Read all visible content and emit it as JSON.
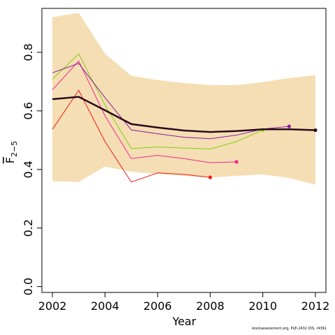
{
  "chart_data": {
    "type": "line",
    "xlabel": "Year",
    "ylabel_main": "F",
    "ylabel_sub": "2−5",
    "xlim": [
      2001.6,
      2012.4
    ],
    "ylim": [
      -0.02,
      0.95
    ],
    "x_ticks": [
      {
        "value": 2002,
        "label": "2002"
      },
      {
        "value": 2004,
        "label": "2004"
      },
      {
        "value": 2006,
        "label": "2006"
      },
      {
        "value": 2008,
        "label": "2008"
      },
      {
        "value": 2010,
        "label": "2010"
      },
      {
        "value": 2012,
        "label": "2012"
      }
    ],
    "y_ticks": [
      {
        "value": 0.0,
        "label": "0.0"
      },
      {
        "value": 0.2,
        "label": "0.2"
      },
      {
        "value": 0.4,
        "label": "0.4"
      },
      {
        "value": 0.6,
        "label": "0.6"
      },
      {
        "value": 0.8,
        "label": "0.8"
      }
    ],
    "band": {
      "color": "#f5deb3",
      "x": [
        2002,
        2003,
        2004,
        2005,
        2006,
        2007,
        2008,
        2009,
        2010,
        2011,
        2012
      ],
      "upper": [
        0.92,
        0.935,
        0.795,
        0.72,
        0.705,
        0.695,
        0.688,
        0.688,
        0.698,
        0.712,
        0.722
      ],
      "lower": [
        0.36,
        0.357,
        0.41,
        0.392,
        0.385,
        0.378,
        0.372,
        0.378,
        0.383,
        0.371,
        0.348
      ]
    },
    "main_series": {
      "color": "#2a0a1e",
      "x": [
        2002,
        2003,
        2004,
        2005,
        2006,
        2007,
        2008,
        2009,
        2010,
        2011,
        2012
      ],
      "values": [
        0.64,
        0.648,
        0.602,
        0.555,
        0.543,
        0.533,
        0.528,
        0.531,
        0.537,
        0.537,
        0.534
      ]
    },
    "retro_series": [
      {
        "color": "#ee1c1c",
        "x": [
          2002,
          2003,
          2004,
          2005,
          2006,
          2007,
          2008
        ],
        "values": [
          0.537,
          0.67,
          0.495,
          0.357,
          0.388,
          0.383,
          0.373
        ]
      },
      {
        "color": "#f0288c",
        "x": [
          2002,
          2003,
          2004,
          2005,
          2006,
          2007,
          2008,
          2009
        ],
        "values": [
          0.672,
          0.77,
          0.583,
          0.437,
          0.448,
          0.437,
          0.423,
          0.426
        ]
      },
      {
        "color": "#80d010",
        "x": [
          2002,
          2003,
          2004,
          2005,
          2006,
          2007,
          2008,
          2009,
          2010
        ],
        "values": [
          0.708,
          0.795,
          0.62,
          0.471,
          0.477,
          0.473,
          0.47,
          0.495,
          0.535
        ]
      },
      {
        "color": "#8a1aa0",
        "x": [
          2002,
          2003,
          2004,
          2005,
          2006,
          2007,
          2008,
          2009,
          2010,
          2011
        ],
        "values": [
          0.73,
          0.762,
          0.645,
          0.535,
          0.522,
          0.51,
          0.505,
          0.517,
          0.538,
          0.547
        ]
      }
    ],
    "grid": false,
    "legend": "none"
  },
  "footer": "stockassessment.org, PLE-2432 DIS, r4391"
}
